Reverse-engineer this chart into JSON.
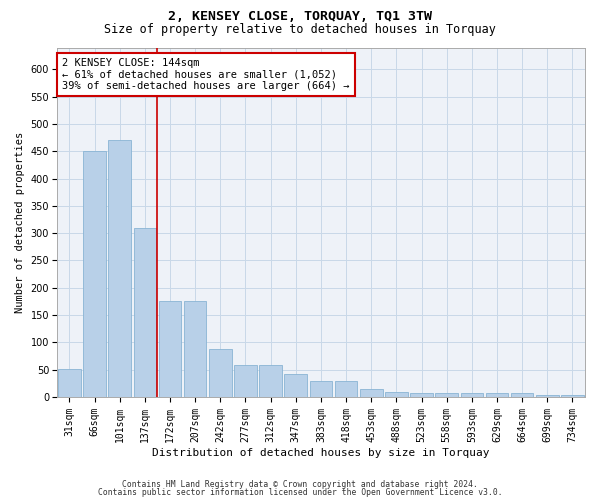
{
  "title": "2, KENSEY CLOSE, TORQUAY, TQ1 3TW",
  "subtitle": "Size of property relative to detached houses in Torquay",
  "xlabel": "Distribution of detached houses by size in Torquay",
  "ylabel": "Number of detached properties",
  "categories": [
    "31sqm",
    "66sqm",
    "101sqm",
    "137sqm",
    "172sqm",
    "207sqm",
    "242sqm",
    "277sqm",
    "312sqm",
    "347sqm",
    "383sqm",
    "418sqm",
    "453sqm",
    "488sqm",
    "523sqm",
    "558sqm",
    "593sqm",
    "629sqm",
    "664sqm",
    "699sqm",
    "734sqm"
  ],
  "values": [
    52,
    450,
    470,
    310,
    175,
    175,
    87,
    58,
    58,
    42,
    30,
    30,
    15,
    10,
    8,
    8,
    7,
    7,
    7,
    3,
    3
  ],
  "bar_color": "#b8d0e8",
  "bar_edge_color": "#8ab4d4",
  "grid_color": "#c8d8e8",
  "annotation_text": "2 KENSEY CLOSE: 144sqm\n← 61% of detached houses are smaller (1,052)\n39% of semi-detached houses are larger (664) →",
  "annotation_box_color": "#ffffff",
  "annotation_box_edge": "#cc0000",
  "vline_x_index": 3,
  "vline_color": "#cc0000",
  "ylim": [
    0,
    640
  ],
  "yticks": [
    0,
    50,
    100,
    150,
    200,
    250,
    300,
    350,
    400,
    450,
    500,
    550,
    600
  ],
  "footer1": "Contains HM Land Registry data © Crown copyright and database right 2024.",
  "footer2": "Contains public sector information licensed under the Open Government Licence v3.0.",
  "plot_bg_color": "#eef2f8",
  "fig_bg_color": "#ffffff",
  "title_fontsize": 9.5,
  "subtitle_fontsize": 8.5,
  "tick_fontsize": 7,
  "ylabel_fontsize": 7.5,
  "xlabel_fontsize": 8,
  "annotation_fontsize": 7.5,
  "footer_fontsize": 5.8
}
